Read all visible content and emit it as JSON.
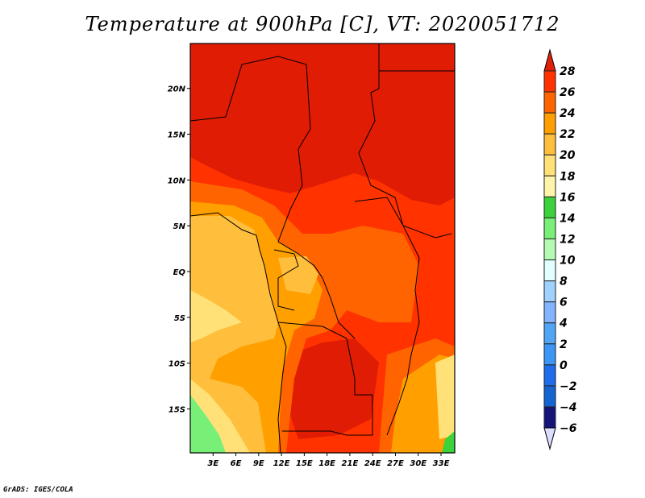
{
  "title": "Temperature at 900hPa [C], VT: 2020051712",
  "credit": "GrADS: IGES/COLA",
  "map": {
    "lon_range": [
      0,
      35
    ],
    "lat_range": [
      -20,
      25
    ],
    "lat_ticks": [
      {
        "v": 20,
        "label": "20N"
      },
      {
        "v": 15,
        "label": "15N"
      },
      {
        "v": 10,
        "label": "10N"
      },
      {
        "v": 5,
        "label": "5N"
      },
      {
        "v": 0,
        "label": "EQ"
      },
      {
        "v": -5,
        "label": "5S"
      },
      {
        "v": -10,
        "label": "10S"
      },
      {
        "v": -15,
        "label": "15S"
      }
    ],
    "lon_ticks": [
      {
        "v": 3,
        "label": "3E"
      },
      {
        "v": 6,
        "label": "6E"
      },
      {
        "v": 9,
        "label": "9E"
      },
      {
        "v": 12,
        "label": "12E"
      },
      {
        "v": 15,
        "label": "15E"
      },
      {
        "v": 18,
        "label": "18E"
      },
      {
        "v": 21,
        "label": "21E"
      },
      {
        "v": 24,
        "label": "24E"
      },
      {
        "v": 27,
        "label": "27E"
      },
      {
        "v": 30,
        "label": "30E"
      },
      {
        "v": 33,
        "label": "33E"
      }
    ]
  },
  "colorbar": {
    "labels": [
      "28",
      "26",
      "24",
      "22",
      "20",
      "18",
      "16",
      "14",
      "12",
      "10",
      "8",
      "6",
      "4",
      "2",
      "0",
      "−2",
      "−4",
      "−6"
    ],
    "over_color": "#e0200a",
    "under_color": "#dcdcff",
    "colors": [
      "#ff3200",
      "#ff6400",
      "#ffa000",
      "#ffbe3c",
      "#ffe178",
      "#fff5aa",
      "#3cd23c",
      "#78f078",
      "#b4fab4",
      "#e1ffff",
      "#a0d2ff",
      "#82b4ff",
      "#50a5f5",
      "#3c96f5",
      "#1e6eeb",
      "#1464d2",
      "#14147a"
    ]
  }
}
